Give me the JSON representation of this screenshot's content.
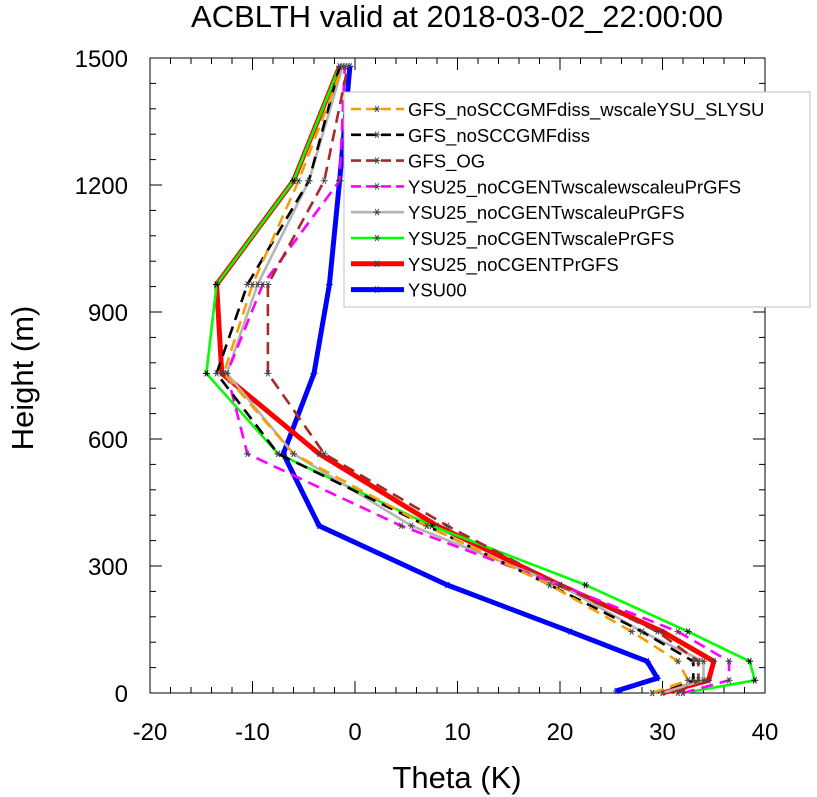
{
  "chart_data": {
    "type": "line",
    "title": "ACBLTH valid at 2018-03-02_22:00:00",
    "xlabel": "Theta (K)",
    "ylabel": "Height (m)",
    "xlim": [
      -20,
      40
    ],
    "ylim": [
      0,
      1500
    ],
    "xticks": [
      -20,
      -10,
      0,
      10,
      20,
      30,
      40
    ],
    "yticks": [
      0,
      300,
      600,
      900,
      1200,
      1500
    ],
    "grid": false,
    "legend_position": "top-right",
    "series": [
      {
        "name": "GFS_noSCCGMFdiss_wscaleYSU_SLYSU",
        "color": "#f5a000",
        "dash": "dash",
        "x": [
          29.0,
          32.5,
          31.5,
          27.0,
          19.0,
          7.0,
          -6.0,
          -12.8,
          -10.0,
          -5.5,
          -1.2
        ],
        "y": [
          0,
          30,
          75,
          145,
          255,
          395,
          565,
          755,
          965,
          1210,
          1480
        ]
      },
      {
        "name": "GFS_noSCCGMFdiss",
        "color": "#000000",
        "dash": "dash",
        "x": [
          29.0,
          33.0,
          33.0,
          28.0,
          19.0,
          7.0,
          -7.5,
          -13.5,
          -10.5,
          -4.5,
          -1.5
        ],
        "y": [
          0,
          30,
          75,
          145,
          255,
          395,
          565,
          755,
          965,
          1210,
          1480
        ]
      },
      {
        "name": "GFS_OG",
        "color": "#a52a2a",
        "dash": "dash",
        "x": [
          31.5,
          33.5,
          33.5,
          29.5,
          20.0,
          9.0,
          -3.0,
          -8.5,
          -8.5,
          -3.0,
          -0.7
        ],
        "y": [
          0,
          30,
          75,
          145,
          255,
          395,
          565,
          755,
          965,
          1210,
          1480
        ]
      },
      {
        "name": "YSU25_noCGENTwscalewscaleuPrGFS",
        "color": "#ff00ff",
        "dash": "dash",
        "x": [
          32.0,
          36.5,
          36.5,
          31.5,
          20.0,
          4.5,
          -10.5,
          -12.5,
          -9.0,
          -1.5,
          -1.0
        ],
        "y": [
          0,
          30,
          75,
          145,
          255,
          395,
          565,
          755,
          965,
          1210,
          1480
        ]
      },
      {
        "name": "YSU25_noCGENTwscaleuPrGFS",
        "color": "#b4b4b4",
        "dash": "solid",
        "x": [
          30.0,
          34.0,
          34.0,
          28.0,
          20.0,
          5.5,
          -6.0,
          -12.5,
          -9.5,
          -4.5,
          -1.2
        ],
        "y": [
          0,
          30,
          75,
          145,
          255,
          395,
          565,
          755,
          965,
          1210,
          1480
        ]
      },
      {
        "name": "YSU25_noCGENTwscalePrGFS",
        "color": "#00ff00",
        "dash": "solid",
        "x": [
          32.0,
          39.0,
          38.5,
          32.5,
          22.5,
          7.5,
          -7.5,
          -14.5,
          -13.5,
          -6.0,
          -1.5
        ],
        "y": [
          0,
          30,
          75,
          145,
          255,
          395,
          565,
          755,
          965,
          1210,
          1480
        ]
      },
      {
        "name": "YSU25_noCGENTPrGFS",
        "color": "#ff0000",
        "dash": "solid",
        "x": [
          30.0,
          34.5,
          35.0,
          30.0,
          20.0,
          8.0,
          -3.5,
          -13.0,
          -13.5,
          -6.0,
          -1.5
        ],
        "y": [
          0,
          30,
          75,
          145,
          255,
          395,
          565,
          755,
          965,
          1210,
          1480
        ]
      },
      {
        "name": "YSU00",
        "color": "#0000ff",
        "dash": "solid",
        "x": [
          25.5,
          29.5,
          28.5,
          21.0,
          9.0,
          -3.5,
          -7.0,
          -4.0,
          -2.5,
          -1.5,
          -0.5
        ],
        "y": [
          5,
          35,
          75,
          145,
          255,
          395,
          565,
          755,
          965,
          1210,
          1480
        ]
      }
    ]
  }
}
